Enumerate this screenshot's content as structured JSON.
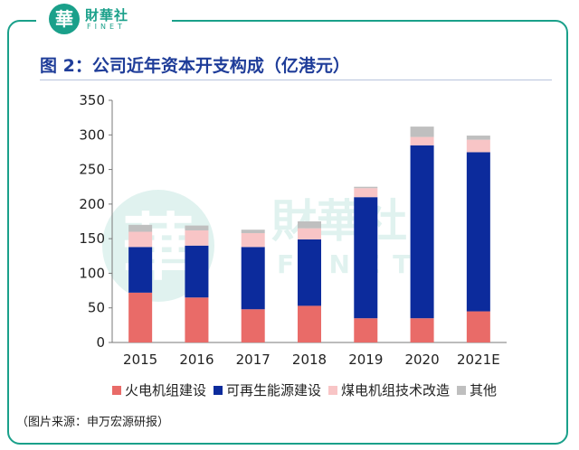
{
  "logo": {
    "badge": "華",
    "name": "財華社",
    "sub": "FINET"
  },
  "watermark": {
    "badge": "華",
    "name": "財華社",
    "sub": "FINET"
  },
  "title": "图 2：公司近年资本开支构成（亿港元）",
  "source": "（图片来源：申万宏源研报）",
  "colors": {
    "accent": "#1aa08a",
    "title": "#1f3d99",
    "thermal": "#e96b68",
    "renewable": "#0c2b9c",
    "retrofit": "#f8c5c6",
    "other": "#bfbfbf"
  },
  "chart_data": {
    "type": "bar",
    "stacked": true,
    "title": "公司近年资本开支构成（亿港元）",
    "xlabel": "",
    "ylabel": "",
    "categories": [
      "2015",
      "2016",
      "2017",
      "2018",
      "2019",
      "2020",
      "2021E"
    ],
    "ylim": [
      0,
      350
    ],
    "yticks": [
      0,
      50,
      100,
      150,
      200,
      250,
      300,
      350
    ],
    "grid": false,
    "legend_position": "bottom",
    "series": [
      {
        "name": "火电机组建设",
        "color": "#e96b68",
        "values": [
          72,
          65,
          48,
          53,
          35,
          35,
          45
        ]
      },
      {
        "name": "可再生能源建设",
        "color": "#0c2b9c",
        "values": [
          66,
          75,
          90,
          96,
          175,
          250,
          230
        ]
      },
      {
        "name": "煤电机组技术改造",
        "color": "#f8c5c6",
        "values": [
          22,
          22,
          20,
          16,
          13,
          12,
          18
        ]
      },
      {
        "name": "其他",
        "color": "#bfbfbf",
        "values": [
          10,
          7,
          5,
          10,
          2,
          15,
          6
        ]
      }
    ]
  }
}
